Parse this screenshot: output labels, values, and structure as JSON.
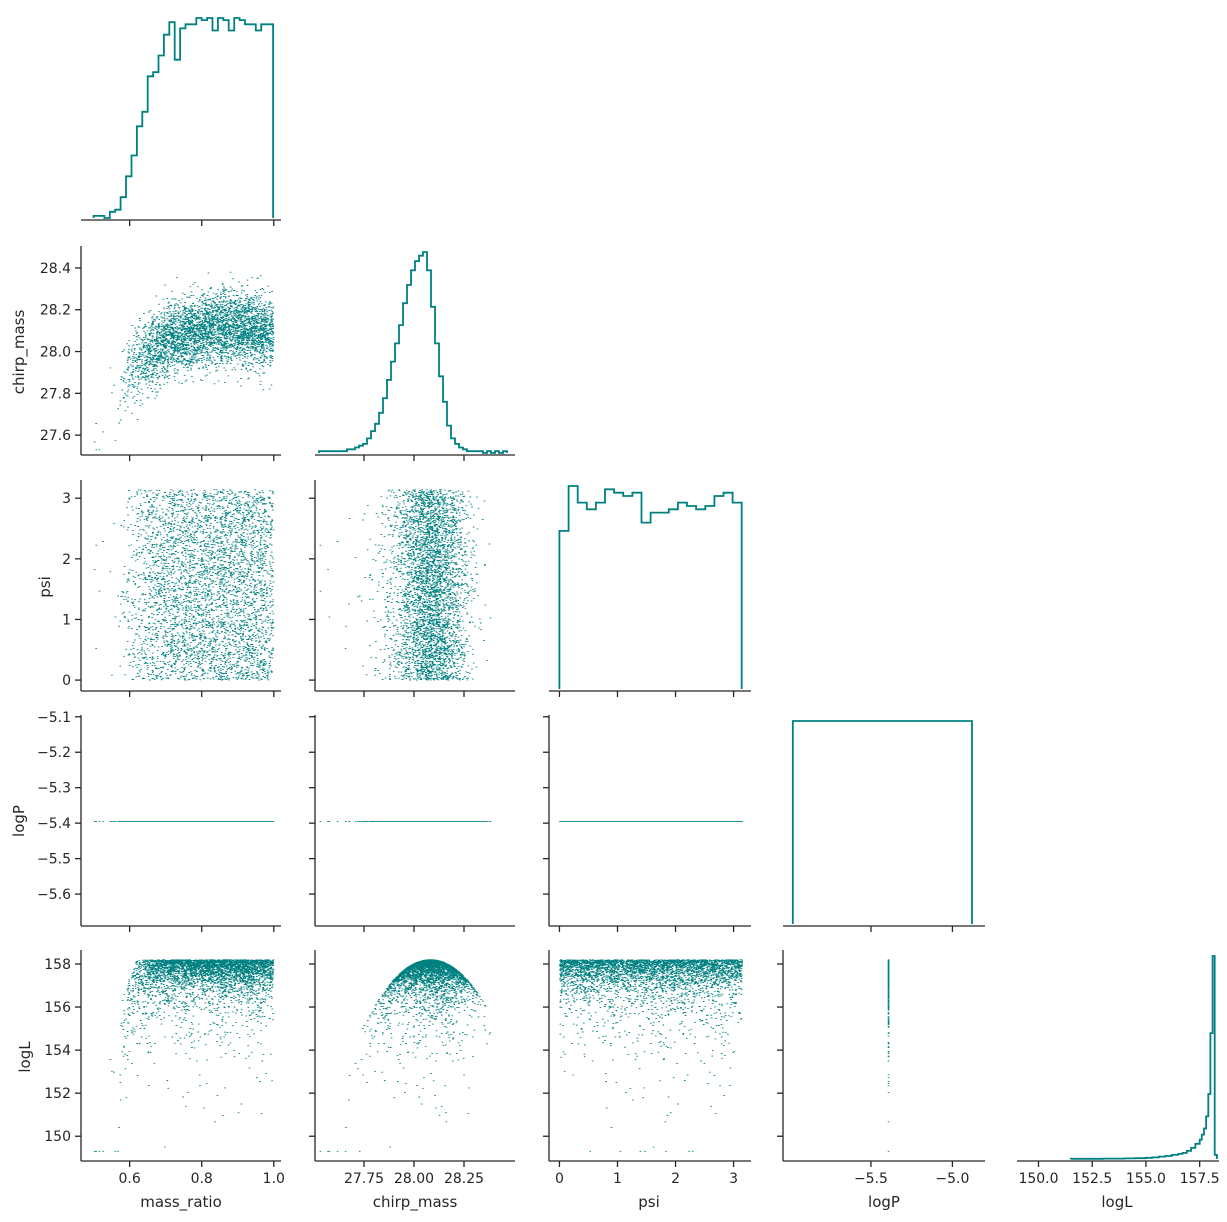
{
  "figure": {
    "accent_color": "#008080",
    "axis_color": "#262626"
  },
  "chart_data": {
    "type": "corner",
    "style": "pairplot lower triangle: step histograms on diagonal, scatter below, no grid, no legend",
    "variables": [
      "mass_ratio",
      "chirp_mass",
      "psi",
      "logP",
      "logL"
    ],
    "ranges": {
      "mass_ratio": [
        0.465,
        1.02
      ],
      "chirp_mass": [
        27.505,
        28.505
      ],
      "psi": [
        -0.18,
        3.3
      ],
      "logP": [
        -5.69,
        -5.095
      ],
      "logL": [
        148.85,
        158.65
      ],
      "logP_diag_x": [
        -6.04,
        -4.8
      ],
      "logL_diag_x": [
        149.0,
        158.4
      ]
    },
    "ticks": {
      "mass_ratio": [
        0.6,
        0.8,
        1.0
      ],
      "mass_ratio_labels": [
        "0.6",
        "0.8",
        "1.0"
      ],
      "chirp_mass_x": [
        27.75,
        28.0,
        28.25
      ],
      "chirp_mass_x_labels": [
        "27.75",
        "28.00",
        "28.25"
      ],
      "chirp_mass_y": [
        27.6,
        27.8,
        28.0,
        28.2,
        28.4
      ],
      "chirp_mass_y_labels": [
        "27.6",
        "27.8",
        "28.0",
        "28.2",
        "28.4"
      ],
      "psi": [
        0,
        1,
        2,
        3
      ],
      "psi_labels": [
        "0",
        "1",
        "2",
        "3"
      ],
      "logP_y": [
        -5.6,
        -5.5,
        -5.4,
        -5.3,
        -5.2,
        -5.1
      ],
      "logP_y_labels": [
        "−5.6",
        "−5.5",
        "−5.4",
        "−5.3",
        "−5.2",
        "−5.1"
      ],
      "logP_x": [
        -5.5,
        -5.0
      ],
      "logP_x_labels": [
        "−5.5",
        "−5.0"
      ],
      "logL_y": [
        150,
        152,
        154,
        156,
        158
      ],
      "logL_y_labels": [
        "150",
        "152",
        "154",
        "156",
        "158"
      ],
      "logL_x": [
        150.0,
        152.5,
        155.0,
        157.5
      ],
      "logL_x_labels": [
        "150.0",
        "152.5",
        "155.0",
        "157.5"
      ]
    },
    "histograms": {
      "mass_ratio": {
        "edges": [
          0.5,
          0.515,
          0.53,
          0.545,
          0.56,
          0.575,
          0.59,
          0.605,
          0.62,
          0.635,
          0.65,
          0.665,
          0.68,
          0.695,
          0.71,
          0.725,
          0.74,
          0.755,
          0.77,
          0.785,
          0.8,
          0.815,
          0.83,
          0.845,
          0.86,
          0.875,
          0.89,
          0.905,
          0.92,
          0.935,
          0.95,
          0.965,
          0.98,
          0.998
        ],
        "counts": [
          1,
          1,
          0,
          3,
          4,
          10,
          20,
          30,
          44,
          51,
          68,
          70,
          78,
          88,
          94,
          76,
          91,
          93,
          93,
          96,
          95,
          96,
          90,
          96,
          95,
          90,
          96,
          95,
          93,
          93,
          90,
          93,
          93
        ]
      },
      "chirp_mass": {
        "edges": [
          27.525,
          27.545,
          27.565,
          27.585,
          27.605,
          27.625,
          27.645,
          27.665,
          27.685,
          27.705,
          27.725,
          27.745,
          27.765,
          27.785,
          27.805,
          27.825,
          27.845,
          27.865,
          27.885,
          27.905,
          27.925,
          27.945,
          27.965,
          27.985,
          28.005,
          28.025,
          28.045,
          28.065,
          28.085,
          28.105,
          28.125,
          28.145,
          28.165,
          28.185,
          28.205,
          28.225,
          28.245,
          28.265,
          28.285,
          28.305,
          28.325,
          28.345,
          28.365,
          28.385,
          28.405,
          28.425,
          28.445,
          28.465
        ],
        "counts": [
          1,
          1,
          1,
          1,
          1,
          1,
          1,
          2,
          2,
          3,
          4,
          5,
          8,
          12,
          16,
          22,
          30,
          40,
          50,
          60,
          70,
          82,
          92,
          100,
          105,
          108,
          110,
          100,
          80,
          60,
          42,
          28,
          15,
          8,
          5,
          3,
          2,
          1,
          1,
          1,
          1,
          0,
          1,
          0,
          1,
          0,
          1
        ]
      },
      "psi": {
        "edges": [
          0,
          0.157,
          0.314,
          0.471,
          0.628,
          0.785,
          0.942,
          1.099,
          1.256,
          1.413,
          1.57,
          1.727,
          1.884,
          2.041,
          2.198,
          2.355,
          2.512,
          2.669,
          2.826,
          2.983,
          3.14
        ],
        "counts": [
          95,
          122,
          112,
          108,
          112,
          120,
          118,
          116,
          118,
          100,
          106,
          106,
          108,
          112,
          110,
          108,
          110,
          116,
          118,
          112
        ]
      },
      "logP": {
        "edges": [
          -5.98,
          -4.88
        ],
        "counts": [
          1
        ]
      },
      "logL": {
        "edges": [
          151.5,
          152.0,
          152.5,
          153.0,
          153.5,
          154.0,
          154.5,
          155.0,
          155.3,
          155.6,
          155.9,
          156.2,
          156.5,
          156.7,
          156.9,
          157.1,
          157.3,
          157.5,
          157.6,
          157.7,
          157.8,
          157.9,
          158.0,
          158.1,
          158.2,
          158.3
        ],
        "counts": [
          1,
          1,
          1,
          2,
          2,
          3,
          4,
          6,
          8,
          12,
          15,
          20,
          25,
          30,
          40,
          55,
          75,
          95,
          120,
          150,
          210,
          320,
          620,
          1000,
          20
        ]
      }
    },
    "scatter_points": 4000
  },
  "axes_labels": {
    "mass_ratio": "mass_ratio",
    "chirp_mass": "chirp_mass",
    "psi": "psi",
    "logP": "logP",
    "logL": "logL"
  }
}
